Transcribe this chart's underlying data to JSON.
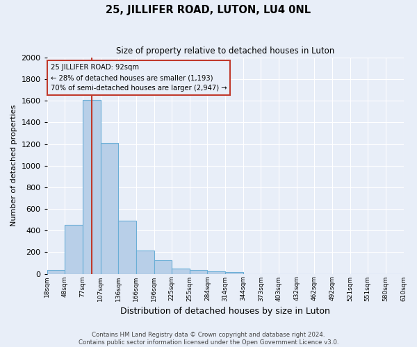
{
  "title": "25, JILLIFER ROAD, LUTON, LU4 0NL",
  "subtitle": "Size of property relative to detached houses in Luton",
  "xlabel": "Distribution of detached houses by size in Luton",
  "ylabel": "Number of detached properties",
  "footer_line1": "Contains HM Land Registry data © Crown copyright and database right 2024.",
  "footer_line2": "Contains public sector information licensed under the Open Government Licence v3.0.",
  "bins": [
    "18sqm",
    "48sqm",
    "77sqm",
    "107sqm",
    "136sqm",
    "166sqm",
    "196sqm",
    "225sqm",
    "255sqm",
    "284sqm",
    "314sqm",
    "344sqm",
    "373sqm",
    "403sqm",
    "432sqm",
    "462sqm",
    "492sqm",
    "521sqm",
    "551sqm",
    "580sqm",
    "610sqm"
  ],
  "values": [
    35,
    455,
    1610,
    1210,
    490,
    215,
    125,
    50,
    35,
    20,
    15,
    0,
    0,
    0,
    0,
    0,
    0,
    0,
    0,
    0
  ],
  "bar_color": "#b8cfe8",
  "bar_edge_color": "#6aaed6",
  "background_color": "#e8eef8",
  "grid_color": "#ffffff",
  "vline_color": "#c0392b",
  "annotation_box_edge": "#c0392b",
  "annotation_box_bg": "#e8eef8",
  "ylim": [
    0,
    2000
  ],
  "yticks": [
    0,
    200,
    400,
    600,
    800,
    1000,
    1200,
    1400,
    1600,
    1800,
    2000
  ],
  "property_sqm": 92,
  "bin_starts": [
    18,
    48,
    77,
    107,
    136,
    166,
    196,
    225,
    255,
    284,
    314,
    344,
    373,
    403,
    432,
    462,
    492,
    521,
    551,
    580,
    610
  ]
}
